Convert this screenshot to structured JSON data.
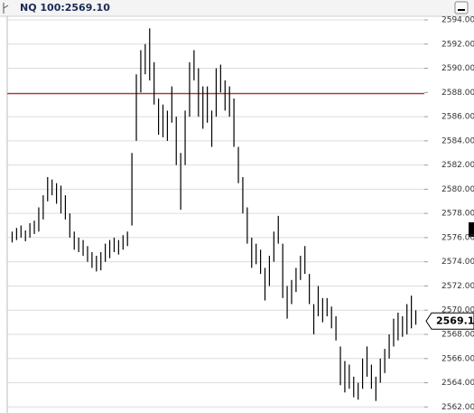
{
  "chart_data": {
    "type": "range-bar",
    "title": "NQ 100:2569.10",
    "color": "#000000",
    "reference_line": {
      "value": 2587.9,
      "color": "#e02020"
    },
    "last_price": 2569.1,
    "ylim": [
      2561.5,
      2594.3
    ],
    "yticks": [
      {
        "value": 2562,
        "label": "2562.00"
      },
      {
        "value": 2564,
        "label": "2564.00"
      },
      {
        "value": 2566,
        "label": "2566.00"
      },
      {
        "value": 2568,
        "label": "2568.00"
      },
      {
        "value": 2570,
        "label": "2570.00"
      },
      {
        "value": 2572,
        "label": "2572.00"
      },
      {
        "value": 2574,
        "label": "2574.00"
      },
      {
        "value": 2576,
        "label": "2576.00"
      },
      {
        "value": 2578,
        "label": "2578.00"
      },
      {
        "value": 2580,
        "label": "2580.00"
      },
      {
        "value": 2582,
        "label": "2582.00"
      },
      {
        "value": 2584,
        "label": "2584.00"
      },
      {
        "value": 2586,
        "label": "2586.00"
      },
      {
        "value": 2588,
        "label": "2588.00"
      },
      {
        "value": 2590,
        "label": "2590.00"
      },
      {
        "value": 2592,
        "label": "2592.00"
      },
      {
        "value": 2594,
        "label": "2594.00"
      }
    ],
    "grid": true,
    "low": [
      2575.6,
      2575.8,
      2576.0,
      2575.7,
      2576.0,
      2576.3,
      2576.5,
      2577.5,
      2579.0,
      2579.5,
      2578.8,
      2578.0,
      2577.5,
      2576.0,
      2575.0,
      2574.8,
      2574.5,
      2574.0,
      2573.5,
      2573.2,
      2573.3,
      2574.0,
      2574.3,
      2574.8,
      2574.6,
      2575.0,
      2575.3,
      2577.0,
      2584.0,
      2588.0,
      2589.5,
      2589.0,
      2587.0,
      2584.5,
      2584.3,
      2584.0,
      2585.5,
      2582.0,
      2578.3,
      2582.0,
      2586.0,
      2589.0,
      2586.0,
      2585.0,
      2585.5,
      2583.5,
      2586.0,
      2588.0,
      2586.5,
      2586.0,
      2583.5,
      2580.5,
      2578.0,
      2575.5,
      2573.5,
      2573.8,
      2573.0,
      2570.8,
      2572.0,
      2574.0,
      2575.5,
      2571.0,
      2569.3,
      2570.5,
      2571.5,
      2572.5,
      2573.0,
      2570.5,
      2568.0,
      2569.5,
      2569.0,
      2569.5,
      2568.5,
      2567.5,
      2563.8,
      2563.2,
      2563.5,
      2562.8,
      2562.6,
      2563.5,
      2564.5,
      2563.5,
      2562.5,
      2564.0,
      2564.8,
      2566.0,
      2567.0,
      2567.5,
      2567.8,
      2568.0,
      2568.5,
      2568.8
    ],
    "high": [
      2576.5,
      2576.8,
      2577.0,
      2576.6,
      2577.2,
      2577.4,
      2578.5,
      2579.5,
      2581.0,
      2580.8,
      2580.5,
      2580.3,
      2579.5,
      2578.0,
      2576.5,
      2576.0,
      2575.8,
      2575.3,
      2574.8,
      2574.5,
      2574.8,
      2575.5,
      2575.8,
      2576.0,
      2575.8,
      2576.2,
      2576.5,
      2583.0,
      2589.5,
      2591.5,
      2592.0,
      2593.3,
      2590.5,
      2587.5,
      2587.0,
      2586.5,
      2588.5,
      2586.0,
      2583.0,
      2586.5,
      2590.5,
      2591.5,
      2590.0,
      2588.5,
      2588.5,
      2586.5,
      2590.0,
      2590.3,
      2589.0,
      2588.5,
      2587.5,
      2583.5,
      2581.0,
      2578.5,
      2576.0,
      2575.5,
      2575.0,
      2573.5,
      2574.5,
      2576.5,
      2577.8,
      2575.5,
      2572.0,
      2572.5,
      2573.5,
      2574.5,
      2575.3,
      2573.0,
      2570.5,
      2572.0,
      2571.0,
      2571.0,
      2570.3,
      2569.5,
      2567.0,
      2565.8,
      2565.5,
      2564.5,
      2564.0,
      2566.0,
      2567.0,
      2565.5,
      2564.5,
      2566.0,
      2566.8,
      2568.0,
      2569.3,
      2569.8,
      2569.5,
      2570.5,
      2571.2,
      2570.0
    ]
  }
}
